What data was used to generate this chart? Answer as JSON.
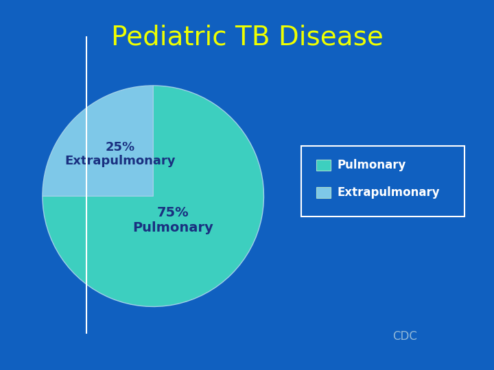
{
  "title": "Pediatric TB Disease",
  "title_color": "#EEFF00",
  "title_fontsize": 28,
  "background_color": "#1060C0",
  "slices": [
    75,
    25
  ],
  "slice_colors": [
    "#3DCFBF",
    "#7EC8E8"
  ],
  "label_75": "75%\nPulmonary",
  "label_25": "25%\nExtrapulmonary",
  "legend_labels": [
    "Pulmonary",
    "Extrapulmonary"
  ],
  "legend_colors": [
    "#3DCFBF",
    "#7EC8E8"
  ],
  "text_color": "#1a3080",
  "cdc_text": "CDC",
  "cdc_color": "#90b8d8",
  "startangle": 90,
  "pie_edge_color": "#a0d0e8",
  "pie_edge_width": 1.0
}
